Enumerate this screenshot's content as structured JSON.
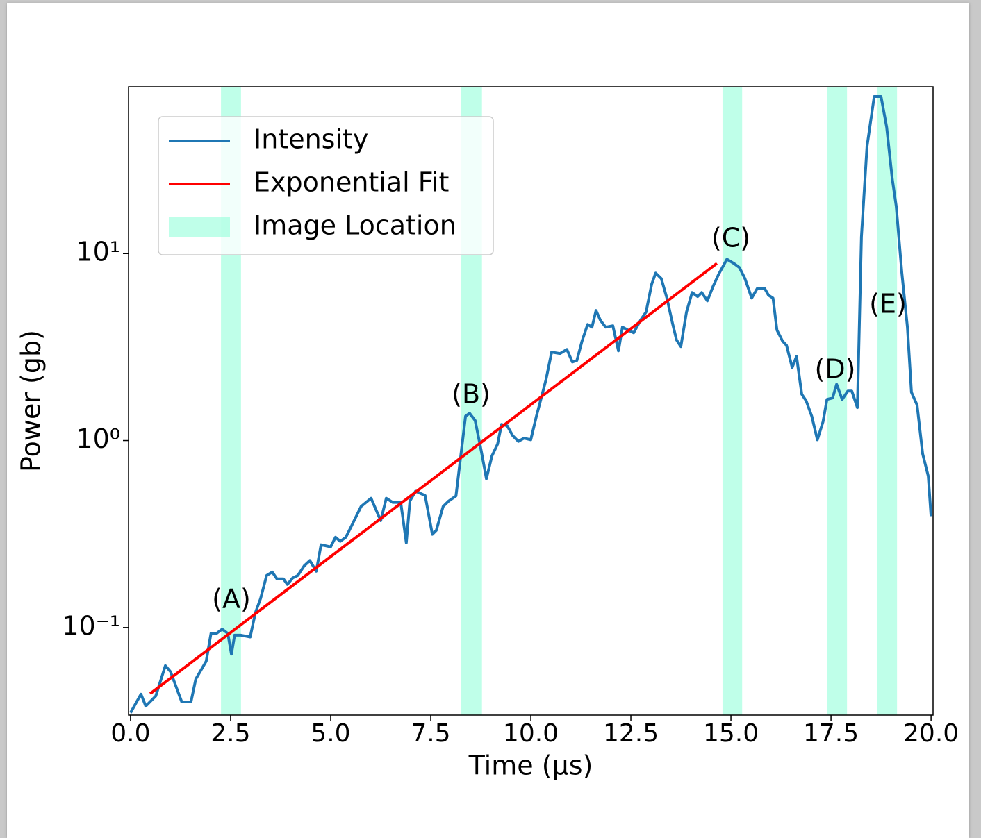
{
  "chart_data": {
    "type": "line",
    "x_label": "Time (μs)",
    "y_label": "Power (gb)",
    "xlim": [
      -0.05,
      20.05
    ],
    "ylim": [
      0.034,
      78
    ],
    "log_y": true,
    "legend": "upper left",
    "xticks": [
      {
        "value": 0,
        "label": "0.0"
      },
      2.5,
      {
        "value": 5,
        "label": "5.0"
      },
      7.5,
      {
        "value": 10,
        "label": "10.0"
      },
      12.5,
      {
        "value": 15,
        "label": "15.0"
      },
      17.5,
      {
        "value": 20,
        "label": "20.0"
      }
    ],
    "yticks": [
      {
        "value": 0.1,
        "label": "10⁻¹"
      },
      {
        "value": 1,
        "label": "10⁰"
      },
      {
        "value": 10,
        "label": "10¹"
      }
    ],
    "series": [
      {
        "name": "Intensity",
        "color": "#1f77b4",
        "x": [
          0,
          0.26,
          0.38,
          0.63,
          0.87,
          1.0,
          1.28,
          1.51,
          1.63,
          1.89,
          2.01,
          2.15,
          2.29,
          2.43,
          2.52,
          2.6,
          2.76,
          2.99,
          3.12,
          3.25,
          3.4,
          3.54,
          3.66,
          3.82,
          3.92,
          4.05,
          4.18,
          4.34,
          4.48,
          4.64,
          4.76,
          5.0,
          5.12,
          5.24,
          5.38,
          5.52,
          5.76,
          6.01,
          6.25,
          6.39,
          6.55,
          6.75,
          6.89,
          6.98,
          7.12,
          7.36,
          7.54,
          7.64,
          7.81,
          7.95,
          8.13,
          8.25,
          8.37,
          8.47,
          8.61,
          8.77,
          8.89,
          9.03,
          9.17,
          9.27,
          9.41,
          9.55,
          9.69,
          9.83,
          10.0,
          10.14,
          10.28,
          10.38,
          10.52,
          10.73,
          10.9,
          11.04,
          11.15,
          11.28,
          11.42,
          11.53,
          11.63,
          11.74,
          11.87,
          12.05,
          12.19,
          12.29,
          12.43,
          12.57,
          12.74,
          12.88,
          13.02,
          13.12,
          13.26,
          13.4,
          13.54,
          13.64,
          13.75,
          13.89,
          14.03,
          14.17,
          14.27,
          14.41,
          14.55,
          14.69,
          14.9,
          15.07,
          15.21,
          15.35,
          15.52,
          15.66,
          15.84,
          15.94,
          16.05,
          16.15,
          16.29,
          16.39,
          16.53,
          16.64,
          16.77,
          16.88,
          17.02,
          17.16,
          17.3,
          17.4,
          17.54,
          17.64,
          17.78,
          17.92,
          18.02,
          18.16,
          18.26,
          18.4,
          18.58,
          18.75,
          18.89,
          19.03,
          19.13,
          19.27,
          19.41,
          19.51,
          19.65,
          19.79,
          19.93,
          20.0
        ],
        "values": [
          0.035,
          0.044,
          0.038,
          0.043,
          0.0625,
          0.058,
          0.04,
          0.04,
          0.053,
          0.066,
          0.093,
          0.093,
          0.098,
          0.093,
          0.072,
          0.091,
          0.091,
          0.089,
          0.12,
          0.143,
          0.19,
          0.198,
          0.182,
          0.182,
          0.17,
          0.184,
          0.19,
          0.214,
          0.228,
          0.2,
          0.277,
          0.27,
          0.304,
          0.289,
          0.304,
          0.349,
          0.444,
          0.491,
          0.373,
          0.491,
          0.467,
          0.467,
          0.284,
          0.475,
          0.536,
          0.508,
          0.315,
          0.331,
          0.444,
          0.475,
          0.505,
          0.828,
          1.35,
          1.4,
          1.28,
          0.865,
          0.625,
          0.828,
          0.958,
          1.22,
          1.2,
          1.06,
          0.99,
          1.03,
          1.01,
          1.35,
          1.75,
          2.12,
          2.97,
          2.92,
          3.07,
          2.63,
          2.68,
          3.4,
          4.18,
          4.04,
          4.96,
          4.4,
          4.04,
          4.11,
          3.02,
          4.04,
          3.9,
          3.77,
          4.4,
          4.87,
          6.86,
          7.87,
          7.35,
          5.78,
          4.25,
          3.46,
          3.18,
          4.87,
          6.19,
          5.89,
          6.19,
          5.59,
          6.64,
          7.73,
          9.33,
          8.87,
          8.43,
          7.35,
          5.78,
          6.52,
          6.52,
          5.99,
          5.78,
          3.9,
          3.4,
          3.23,
          2.46,
          2.82,
          1.77,
          1.63,
          1.35,
          1.01,
          1.26,
          1.66,
          1.69,
          2.0,
          1.66,
          1.84,
          1.84,
          1.5,
          12.3,
          37.3,
          69.2,
          69.2,
          47.5,
          25.2,
          17.9,
          7.87,
          4.04,
          1.81,
          1.55,
          0.85,
          0.645,
          0.394
        ]
      },
      {
        "name": "Exponential Fit",
        "color": "#ff0000",
        "x": [
          0.49,
          14.65
        ],
        "values": [
          0.0443,
          8.87
        ]
      }
    ],
    "spans": {
      "name": "Image Location",
      "color": "#7fffd4",
      "ranges": [
        [
          2.26,
          2.76
        ],
        [
          8.26,
          8.78
        ],
        [
          14.79,
          15.28
        ],
        [
          17.4,
          17.9
        ],
        [
          18.65,
          19.15
        ]
      ]
    },
    "annotations": [
      "(A)",
      "(B)",
      "(C)",
      "(D)",
      "(E)"
    ]
  }
}
